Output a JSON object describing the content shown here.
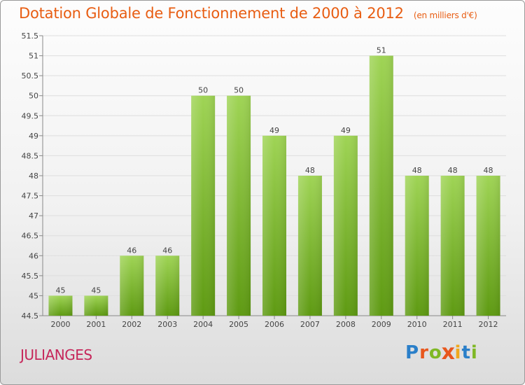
{
  "header": {
    "title": "Dotation Globale de Fonctionnement de 2000 à 2012",
    "subtitle": "(en milliers d'€)"
  },
  "footer": {
    "commune": "JULIANGES",
    "logo_text": "Proxiti"
  },
  "colors": {
    "title": "#e85d12",
    "commune": "#c6265a",
    "bar_light": "#9fd455",
    "bar_dark": "#5e9a12",
    "logo": [
      "#2a7fc9",
      "#e8571d",
      "#7fb825",
      "#e8571d",
      "#f0a81c",
      "#2a7fc9",
      "#7fb825"
    ]
  },
  "chart_data": {
    "type": "bar",
    "title": "Dotation Globale de Fonctionnement de 2000 à 2012",
    "subtitle": "(en milliers d'€)",
    "categories": [
      "2000",
      "2001",
      "2002",
      "2003",
      "2004",
      "2005",
      "2006",
      "2007",
      "2008",
      "2009",
      "2010",
      "2011",
      "2012"
    ],
    "values": [
      45,
      45,
      46,
      46,
      50,
      50,
      49,
      48,
      49,
      51,
      48,
      48,
      48
    ],
    "data_labels": [
      "45",
      "45",
      "46",
      "46",
      "50",
      "50",
      "49",
      "48",
      "49",
      "51",
      "48",
      "48",
      "48"
    ],
    "ylim": [
      44.5,
      51.5
    ],
    "yticks": [
      44.5,
      45,
      45.5,
      46,
      46.5,
      47,
      47.5,
      48,
      48.5,
      49,
      49.5,
      50,
      50.5,
      51,
      51.5
    ],
    "ytick_labels": [
      "44.5",
      "45",
      "45.5",
      "46",
      "46.5",
      "47",
      "47.5",
      "48",
      "48.5",
      "49",
      "49.5",
      "50",
      "50.5",
      "51",
      "51.5"
    ],
    "grid": true,
    "legend": "none"
  }
}
